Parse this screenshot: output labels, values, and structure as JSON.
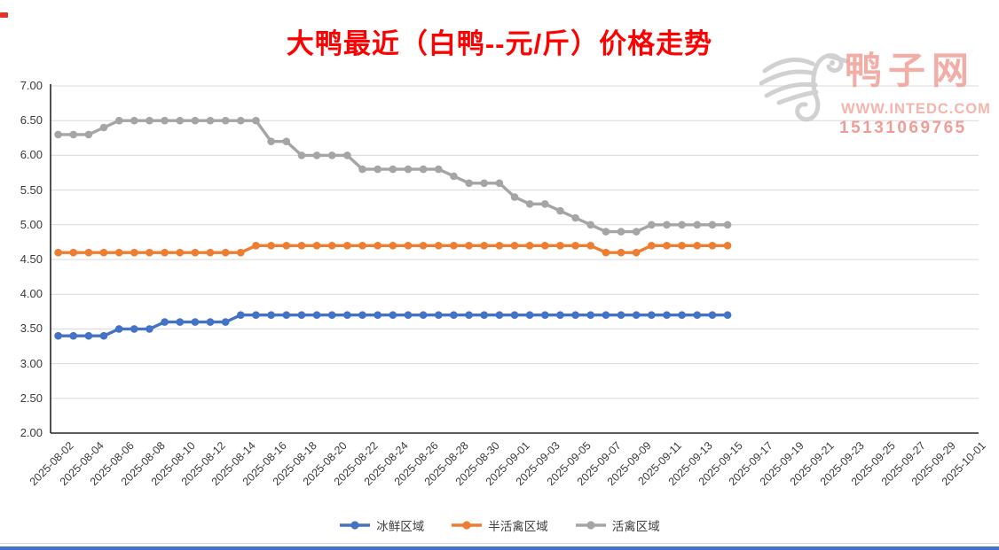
{
  "title": "大鸭最近（白鸭--元/斤）价格走势",
  "title_color": "#FF0000",
  "watermark": {
    "brand": "鸭子网",
    "website": "WWW.INTEDC.COM",
    "phone": "15131069765"
  },
  "colors": {
    "chilled_blue": "#4472C4",
    "semi_live_orange": "#ED7D31",
    "live_gray": "#A5A5A5",
    "gridline": "#D9D9D9",
    "axis_line": "#262626",
    "axis_text": "#3B3B3B",
    "watermark_pink": "#EF9A91",
    "bottom_bar_blue": "#4472C4"
  },
  "y_axis": {
    "labels": [
      "7.00",
      "6.50",
      "6.00",
      "5.50",
      "5.00",
      "4.50",
      "4.00",
      "3.50",
      "3.00",
      "2.50",
      "2.00"
    ],
    "min": 2.0,
    "max": 7.0,
    "step": 0.5
  },
  "x_axis": {
    "tick_labels": [
      "2025-08-02",
      "2025-08-04",
      "2025-08-06",
      "2025-08-08",
      "2025-08-10",
      "2025-08-12",
      "2025-08-14",
      "2025-08-16",
      "2025-08-18",
      "2025-08-20",
      "2025-08-22",
      "2025-08-24",
      "2025-08-26",
      "2025-08-28",
      "2025-08-30",
      "2025-09-01",
      "2025-09-03",
      "2025-09-05",
      "2025-09-07",
      "2025-09-09",
      "2025-09-11",
      "2025-09-13",
      "2025-09-15",
      "2025-09-17",
      "2025-09-19",
      "2025-09-21",
      "2025-09-23",
      "2025-09-25",
      "2025-09-27",
      "2025-09-29",
      "2025-10-01"
    ],
    "label_interval_days": 2
  },
  "legend": [
    "冰鲜区域",
    "半活禽区域",
    "活禽区域"
  ],
  "chart_data": {
    "type": "line",
    "title": "大鸭最近（白鸭--元/斤）价格走势",
    "ylim": [
      2.0,
      7.0
    ],
    "grid": "horizontal",
    "legend_position": "bottom",
    "x_full_range": [
      "2025-08-02",
      "2025-10-01"
    ],
    "x": [
      "2025-08-02",
      "2025-08-03",
      "2025-08-04",
      "2025-08-05",
      "2025-08-06",
      "2025-08-07",
      "2025-08-08",
      "2025-08-09",
      "2025-08-10",
      "2025-08-11",
      "2025-08-12",
      "2025-08-13",
      "2025-08-14",
      "2025-08-15",
      "2025-08-16",
      "2025-08-17",
      "2025-08-18",
      "2025-08-19",
      "2025-08-20",
      "2025-08-21",
      "2025-08-22",
      "2025-08-23",
      "2025-08-24",
      "2025-08-25",
      "2025-08-26",
      "2025-08-27",
      "2025-08-28",
      "2025-08-29",
      "2025-08-30",
      "2025-08-31",
      "2025-09-01",
      "2025-09-02",
      "2025-09-03",
      "2025-09-04",
      "2025-09-05",
      "2025-09-06",
      "2025-09-07",
      "2025-09-08",
      "2025-09-09",
      "2025-09-10",
      "2025-09-11",
      "2025-09-12",
      "2025-09-13",
      "2025-09-14",
      "2025-09-15"
    ],
    "series": [
      {
        "name": "冰鲜区域",
        "color": "#4472C4",
        "values": [
          3.4,
          3.4,
          3.4,
          3.4,
          3.5,
          3.5,
          3.5,
          3.6,
          3.6,
          3.6,
          3.6,
          3.6,
          3.7,
          3.7,
          3.7,
          3.7,
          3.7,
          3.7,
          3.7,
          3.7,
          3.7,
          3.7,
          3.7,
          3.7,
          3.7,
          3.7,
          3.7,
          3.7,
          3.7,
          3.7,
          3.7,
          3.7,
          3.7,
          3.7,
          3.7,
          3.7,
          3.7,
          3.7,
          3.7,
          3.7,
          3.7,
          3.7,
          3.7,
          3.7,
          3.7
        ]
      },
      {
        "name": "半活禽区域",
        "color": "#ED7D31",
        "values": [
          4.6,
          4.6,
          4.6,
          4.6,
          4.6,
          4.6,
          4.6,
          4.6,
          4.6,
          4.6,
          4.6,
          4.6,
          4.6,
          4.7,
          4.7,
          4.7,
          4.7,
          4.7,
          4.7,
          4.7,
          4.7,
          4.7,
          4.7,
          4.7,
          4.7,
          4.7,
          4.7,
          4.7,
          4.7,
          4.7,
          4.7,
          4.7,
          4.7,
          4.7,
          4.7,
          4.7,
          4.6,
          4.6,
          4.6,
          4.7,
          4.7,
          4.7,
          4.7,
          4.7,
          4.7
        ]
      },
      {
        "name": "活禽区域",
        "color": "#A5A5A5",
        "values": [
          6.3,
          6.3,
          6.3,
          6.4,
          6.5,
          6.5,
          6.5,
          6.5,
          6.5,
          6.5,
          6.5,
          6.5,
          6.5,
          6.5,
          6.2,
          6.2,
          6.0,
          6.0,
          6.0,
          6.0,
          5.8,
          5.8,
          5.8,
          5.8,
          5.8,
          5.8,
          5.7,
          5.6,
          5.6,
          5.6,
          5.4,
          5.3,
          5.3,
          5.2,
          5.1,
          5.0,
          4.9,
          4.9,
          4.9,
          5.0,
          5.0,
          5.0,
          5.0,
          5.0,
          5.0
        ]
      }
    ]
  }
}
